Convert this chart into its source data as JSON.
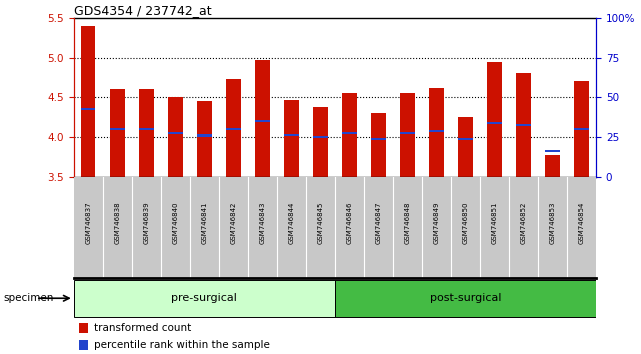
{
  "title": "GDS4354 / 237742_at",
  "samples": [
    "GSM746837",
    "GSM746838",
    "GSM746839",
    "GSM746840",
    "GSM746841",
    "GSM746842",
    "GSM746843",
    "GSM746844",
    "GSM746845",
    "GSM746846",
    "GSM746847",
    "GSM746848",
    "GSM746849",
    "GSM746850",
    "GSM746851",
    "GSM746852",
    "GSM746853",
    "GSM746854"
  ],
  "bar_tops": [
    5.4,
    4.6,
    4.6,
    4.5,
    4.45,
    4.73,
    4.97,
    4.47,
    4.38,
    4.55,
    4.3,
    4.55,
    4.62,
    4.25,
    4.95,
    4.8,
    3.78,
    4.7
  ],
  "blue_markers": [
    4.35,
    4.1,
    4.1,
    4.05,
    4.02,
    4.1,
    4.2,
    4.03,
    4.0,
    4.05,
    3.98,
    4.05,
    4.08,
    3.98,
    4.18,
    4.15,
    3.83,
    4.1
  ],
  "bar_bottom": 3.5,
  "ylim": [
    3.5,
    5.5
  ],
  "yticks_left": [
    3.5,
    4.0,
    4.5,
    5.0,
    5.5
  ],
  "right_yticks": [
    0,
    25,
    50,
    75,
    100
  ],
  "bar_color": "#cc1100",
  "blue_color": "#2244cc",
  "groups": [
    {
      "label": "pre-surgical",
      "color": "#ccffcc",
      "start": 0,
      "end": 9
    },
    {
      "label": "post-surgical",
      "color": "#44bb44",
      "start": 9,
      "end": 18
    }
  ],
  "legend_red_label": "transformed count",
  "legend_blue_label": "percentile rank within the sample",
  "specimen_label": "specimen",
  "axis_color_left": "#cc1100",
  "axis_color_right": "#0000cc",
  "xlabel_bg": "#c8c8c8",
  "title_fontsize": 9,
  "bar_width": 0.5
}
